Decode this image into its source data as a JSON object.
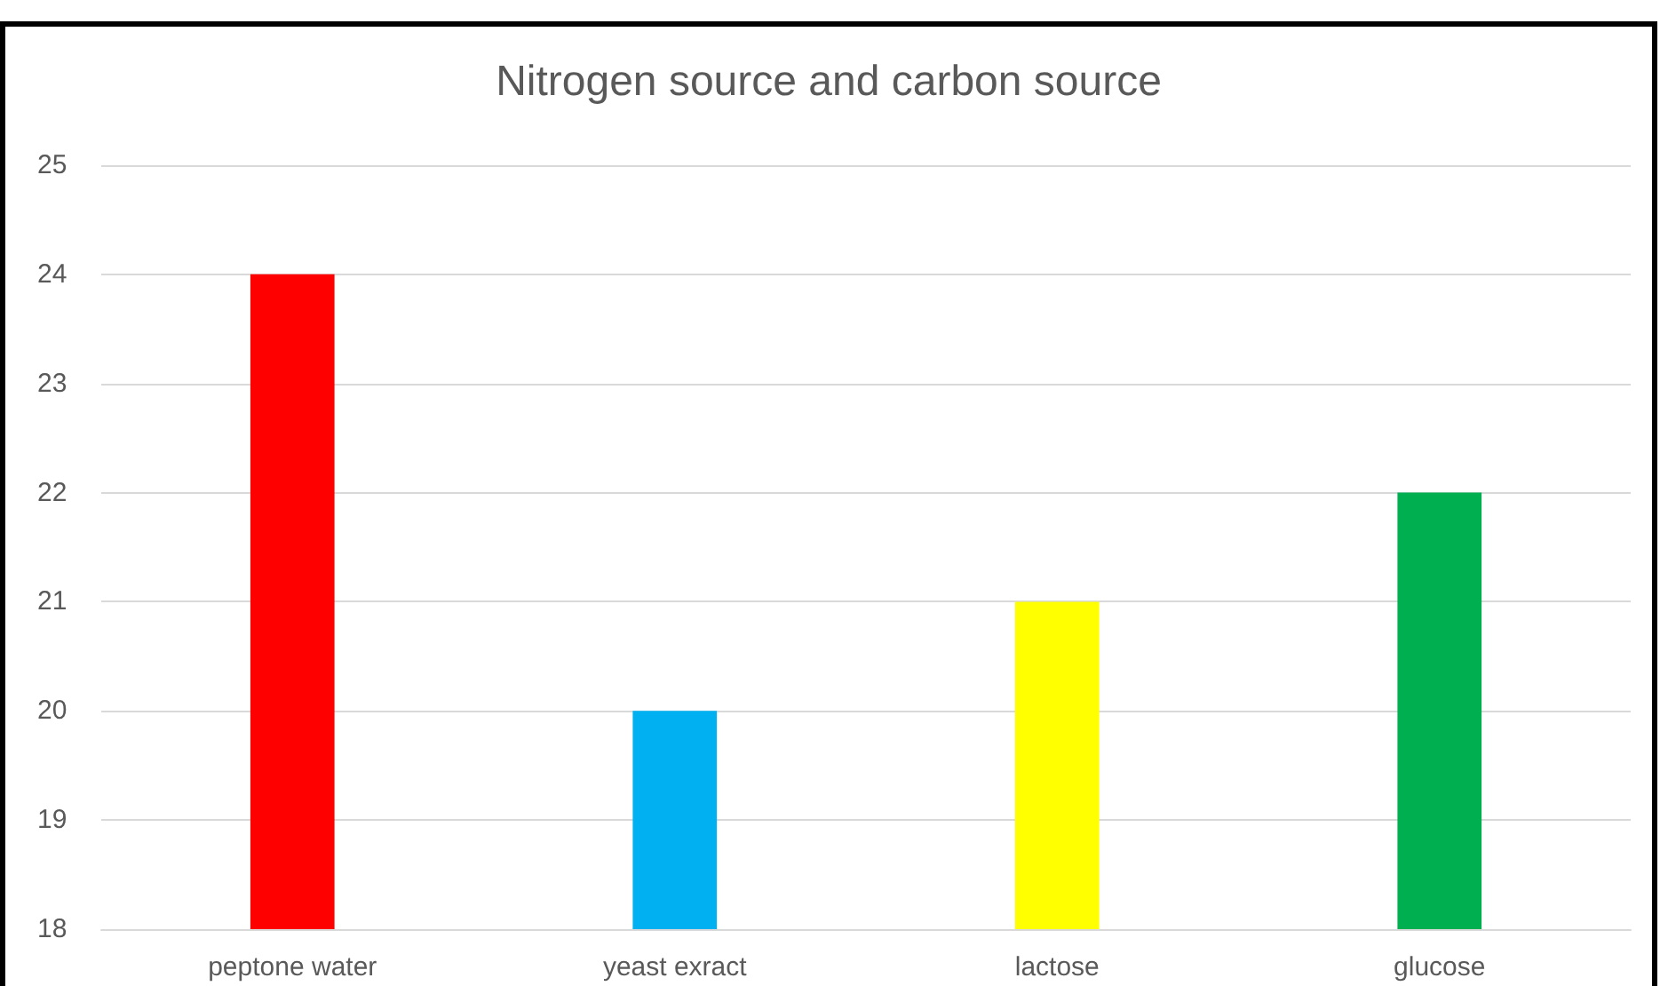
{
  "chart_data": {
    "type": "bar",
    "title": "Nitrogen source and carbon source",
    "categories": [
      "peptone water",
      "yeast exract",
      "lactose",
      "glucose"
    ],
    "values": [
      24,
      20,
      21,
      22
    ],
    "colors": [
      "#ff0000",
      "#00b0f0",
      "#ffff00",
      "#00b050"
    ],
    "ylim": [
      18,
      25
    ],
    "yticks": [
      18,
      19,
      20,
      21,
      22,
      23,
      24,
      25
    ],
    "grid": "y"
  }
}
